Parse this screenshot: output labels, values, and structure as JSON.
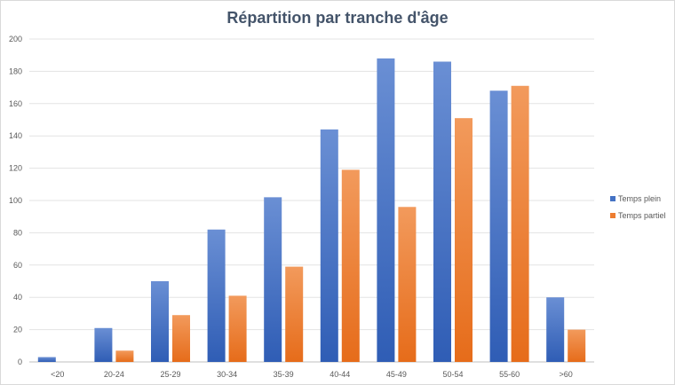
{
  "chart_data": {
    "type": "bar",
    "title": "Répartition par tranche d'âge",
    "xlabel": "",
    "ylabel": "",
    "categories": [
      "<20",
      "20-24",
      "25-29",
      "30-34",
      "35-39",
      "40-44",
      "45-49",
      "50-54",
      "55-60",
      ">60"
    ],
    "series": [
      {
        "name": "Temps plein",
        "values": [
          3,
          21,
          50,
          82,
          102,
          144,
          188,
          186,
          168,
          40
        ],
        "color": "#4472c4"
      },
      {
        "name": "Temps partiel",
        "values": [
          0,
          7,
          29,
          41,
          59,
          119,
          96,
          151,
          171,
          20
        ],
        "color": "#ed7d31"
      }
    ],
    "ylim": [
      0,
      200
    ],
    "yticks": [
      0,
      20,
      40,
      60,
      80,
      100,
      120,
      140,
      160,
      180,
      200
    ],
    "grid": true,
    "legend_position": "right"
  }
}
